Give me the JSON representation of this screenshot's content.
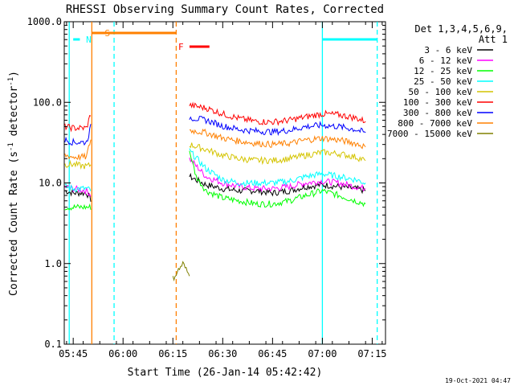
{
  "chart_data": {
    "type": "line",
    "title": "RHESSI Observing Summary Count Rates, Corrected",
    "xlabel": "Start Time (26-Jan-14 05:42:42)",
    "ylabel_main": "Corrected Count Rate (s",
    "ylabel_sup1": "-1",
    "ylabel_mid": " detector",
    "ylabel_sup2": "-1",
    "ylabel_end": ")",
    "y_scale": "log",
    "ylim": [
      0.1,
      1000
    ],
    "xlim_minutes": [
      -2.7,
      94
    ],
    "x_ticks": [
      {
        "label": "05:45",
        "t": 0
      },
      {
        "label": "06:00",
        "t": 15
      },
      {
        "label": "06:15",
        "t": 30
      },
      {
        "label": "06:30",
        "t": 45
      },
      {
        "label": "06:45",
        "t": 60
      },
      {
        "label": "07:00",
        "t": 75
      },
      {
        "label": "07:15",
        "t": 90
      }
    ],
    "y_ticks": [
      {
        "label": "1000.0",
        "v": 1000
      },
      {
        "label": "100.0",
        "v": 100
      },
      {
        "label": "10.0",
        "v": 10
      },
      {
        "label": "1.0",
        "v": 1
      },
      {
        "label": "0.1",
        "v": 0.1
      }
    ],
    "legend": {
      "header_line1": "Det 1,3,4,5,6,9,",
      "header_line2": "Att 1",
      "placement": "right"
    },
    "series": [
      {
        "name": "3 - 6 keV",
        "color": "#000000",
        "x": [
          -2.5,
          0,
          4,
          5.6,
          35,
          40,
          45,
          50,
          55,
          60,
          65,
          70,
          75,
          80,
          85,
          88
        ],
        "y": [
          8,
          7.5,
          7.5,
          6,
          12,
          9.5,
          8.5,
          8,
          8,
          7.5,
          8,
          9,
          9.5,
          9,
          8.5,
          8
        ]
      },
      {
        "name": "6 - 12 keV",
        "color": "#ff00ff",
        "x": [
          -2.5,
          0,
          4,
          5.6,
          35,
          40,
          45,
          50,
          55,
          60,
          65,
          70,
          75,
          80,
          85,
          88
        ],
        "y": [
          9,
          8.5,
          8,
          7,
          20,
          12,
          10,
          9,
          8.5,
          8.5,
          9,
          10,
          10.5,
          10,
          9,
          8.5
        ]
      },
      {
        "name": "12 - 25 keV",
        "color": "#00ff00",
        "x": [
          -2.5,
          0,
          4,
          5.6,
          35,
          37,
          40,
          45,
          50,
          55,
          60,
          65,
          70,
          75,
          80,
          85,
          88
        ],
        "y": [
          5,
          5,
          5,
          5,
          25,
          12,
          8,
          6.5,
          6,
          5.5,
          5.5,
          6,
          7,
          8,
          7,
          6,
          5.5
        ]
      },
      {
        "name": "25 - 50 keV",
        "color": "#00ffff",
        "x": [
          -2.5,
          0,
          4,
          5.6,
          35,
          40,
          45,
          50,
          55,
          60,
          65,
          70,
          75,
          80,
          85,
          88
        ],
        "y": [
          9,
          8.5,
          8.5,
          8,
          25,
          15,
          11,
          10,
          10,
          10,
          10.5,
          12,
          13,
          12,
          11,
          10
        ]
      },
      {
        "name": "50 - 100 keV",
        "color": "#d4c400",
        "x": [
          -2.5,
          0,
          4,
          5.6,
          35,
          40,
          45,
          50,
          55,
          60,
          65,
          70,
          75,
          80,
          85,
          88
        ],
        "y": [
          17,
          17,
          16,
          17,
          30,
          26,
          22,
          20,
          19,
          19,
          20,
          22,
          24,
          23,
          21,
          19
        ]
      },
      {
        "name": "100 - 300 keV",
        "color": "#ff0000",
        "x": [
          -2.5,
          0,
          4,
          5.6,
          35,
          40,
          45,
          50,
          55,
          60,
          65,
          70,
          75,
          80,
          85,
          88
        ],
        "y": [
          50,
          48,
          48,
          80,
          92,
          85,
          72,
          63,
          58,
          57,
          60,
          66,
          72,
          70,
          64,
          58
        ]
      },
      {
        "name": "300 - 800 keV",
        "color": "#0000ff",
        "x": [
          -2.5,
          0,
          4,
          5.6,
          35,
          40,
          45,
          50,
          55,
          60,
          65,
          70,
          75,
          80,
          85,
          88
        ],
        "y": [
          34,
          32,
          32,
          55,
          65,
          60,
          51,
          46,
          44,
          43,
          45,
          50,
          52,
          50,
          46,
          42
        ]
      },
      {
        "name": "800 - 7000 keV",
        "color": "#ff8000",
        "x": [
          -2.5,
          0,
          4,
          5.6,
          35,
          40,
          45,
          50,
          55,
          60,
          65,
          70,
          75,
          80,
          85,
          88
        ],
        "y": [
          22,
          21,
          21,
          40,
          45,
          42,
          36,
          33,
          31,
          30,
          31,
          34,
          36,
          34,
          31,
          28
        ]
      },
      {
        "name": "7000 - 15000 keV",
        "color": "#808000",
        "x": [
          30,
          33,
          35
        ],
        "y": [
          0.65,
          1.0,
          0.7
        ]
      }
    ],
    "state_bars": [
      {
        "label": "S",
        "t_start": 5.6,
        "t_end": 31,
        "color": "#ff8000"
      },
      {
        "label": "N",
        "t_start": 0,
        "t_end": 2,
        "color": "#00ffff"
      },
      {
        "label": "F",
        "t_start": 35,
        "t_end": 41,
        "color": "#ff0000"
      }
    ],
    "night_bar_right": {
      "t_start": 75,
      "t_end": 91.5,
      "color": "#00ffff"
    },
    "vertical_lines": [
      {
        "t": -1.2,
        "color": "#00ffff",
        "style": "solid"
      },
      {
        "t": 5.6,
        "color": "#ff8000",
        "style": "solid"
      },
      {
        "t": 12.3,
        "color": "#00ffff",
        "style": "dashed"
      },
      {
        "t": 31,
        "color": "#ff8000",
        "style": "dashed"
      },
      {
        "t": 75,
        "color": "#00ffff",
        "style": "solid"
      },
      {
        "t": 91.5,
        "color": "#00ffff",
        "style": "dashed"
      }
    ],
    "footer_date": "19-Oct-2021 04:47"
  }
}
